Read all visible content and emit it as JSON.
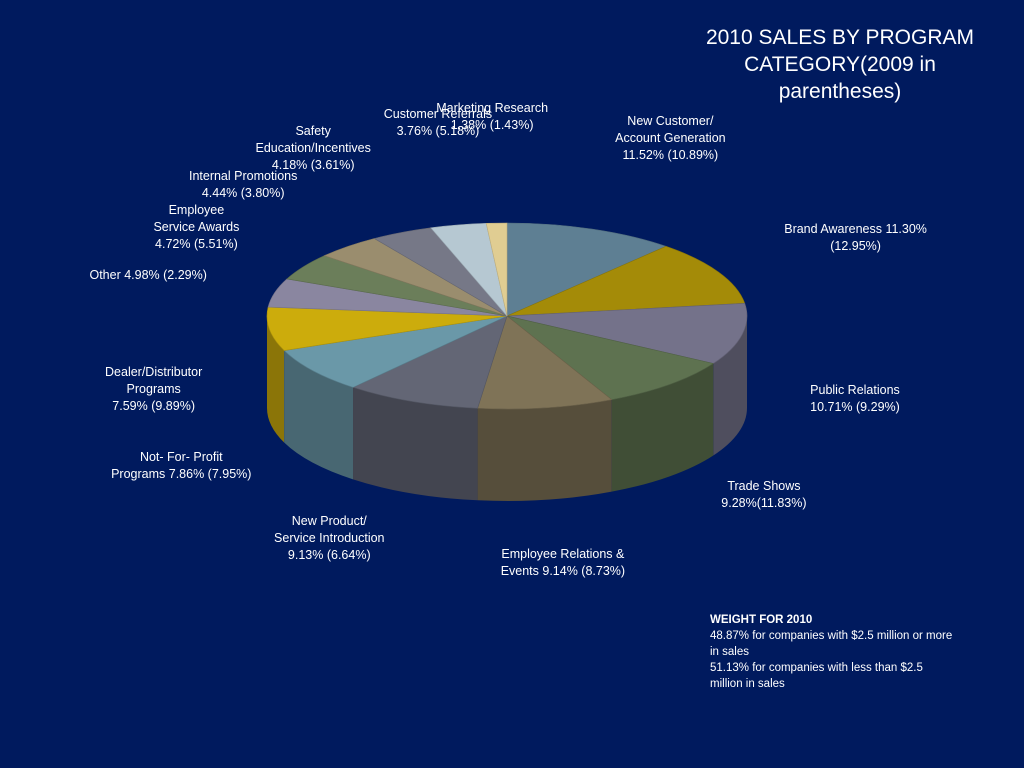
{
  "title": {
    "lines": [
      "2010 SALES BY PROGRAM",
      "CATEGORY(2009 in",
      "parentheses)"
    ]
  },
  "chart_data": {
    "type": "pie",
    "title": "2010 SALES BY PROGRAM CATEGORY(2009 in parentheses)",
    "slices": [
      {
        "label_lines": [
          "New Customer/",
          "Account Generation",
          "11.52% (10.89%)"
        ],
        "value": 11.52,
        "value_2009": 10.89,
        "color": "#5e7f93"
      },
      {
        "label_lines": [
          "Brand Awareness 11.30%",
          "(12.95%)"
        ],
        "value": 11.3,
        "value_2009": 12.95,
        "color": "#a48b08"
      },
      {
        "label_lines": [
          "Public Relations",
          "10.71% (9.29%)"
        ],
        "value": 10.71,
        "value_2009": 9.29,
        "color": "#74728a"
      },
      {
        "label_lines": [
          "Trade Shows",
          "9.28%(11.83%)"
        ],
        "value": 9.28,
        "value_2009": 11.83,
        "color": "#5e7250"
      },
      {
        "label_lines": [
          "Employee Relations &",
          "Events 9.14% (8.73%)"
        ],
        "value": 9.14,
        "value_2009": 8.73,
        "color": "#7f7357"
      },
      {
        "label_lines": [
          "New Product/",
          "Service Introduction",
          "9.13% (6.64%)"
        ],
        "value": 9.13,
        "value_2009": 6.64,
        "color": "#636675"
      },
      {
        "label_lines": [
          "Not- For- Profit",
          "Programs 7.86% (7.95%)"
        ],
        "value": 7.86,
        "value_2009": 7.95,
        "color": "#6a98a8"
      },
      {
        "label_lines": [
          "Dealer/Distributor",
          "Programs",
          "7.59% (9.89%)"
        ],
        "value": 7.59,
        "value_2009": 9.89,
        "color": "#ccac0c"
      },
      {
        "label_lines": [
          "Other 4.98% (2.29%)"
        ],
        "value": 4.98,
        "value_2009": 2.29,
        "color": "#8a86a0"
      },
      {
        "label_lines": [
          "Employee",
          "Service Awards",
          "4.72% (5.51%)"
        ],
        "value": 4.72,
        "value_2009": 5.51,
        "color": "#6b7e5a"
      },
      {
        "label_lines": [
          "Internal Promotions",
          "4.44% (3.80%)"
        ],
        "value": 4.44,
        "value_2009": 3.8,
        "color": "#9a8d6e"
      },
      {
        "label_lines": [
          "Safety",
          "Education/Incentives",
          "4.18% (3.61%)"
        ],
        "value": 4.18,
        "value_2009": 3.61,
        "color": "#767887"
      },
      {
        "label_lines": [
          "Customer Referrals",
          "3.76% (5.18%)"
        ],
        "value": 3.76,
        "value_2009": 5.18,
        "color": "#b6c8d2"
      },
      {
        "label_lines": [
          "Marketing Research",
          "1.38% (1.43%)"
        ],
        "value": 1.38,
        "value_2009": 1.43,
        "color": "#e0cd92"
      }
    ]
  },
  "weight": {
    "heading": "WEIGHT FOR 2010",
    "lines": [
      "48.87%  for companies with $2.5 million or more",
      "in sales",
      "51.13% for companies with less than $2.5",
      "million in sales"
    ]
  }
}
